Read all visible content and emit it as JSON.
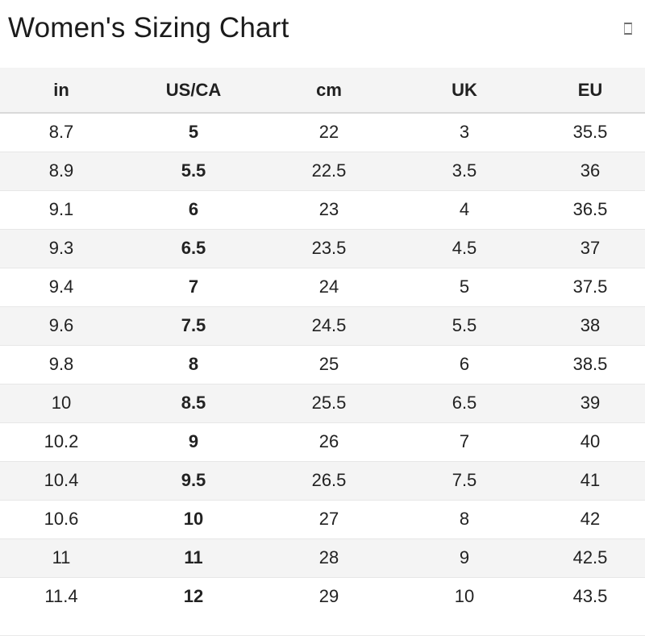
{
  "page": {
    "title": "Women's Sizing Chart"
  },
  "icons": {
    "corner_glyph": "unknown-glyph-box"
  },
  "colors": {
    "background": "#ffffff",
    "stripe": "#f4f4f4",
    "header_background": "#f4f4f4",
    "row_border": "#e7e7e7",
    "header_border": "#d9d9d9",
    "text": "#222222",
    "title_text": "#1b1b1b"
  },
  "table": {
    "columns": [
      "in",
      "US/CA",
      "cm",
      "UK",
      "EU"
    ],
    "rows": [
      [
        "8.7",
        "5",
        "22",
        "3",
        "35.5"
      ],
      [
        "8.9",
        "5.5",
        "22.5",
        "3.5",
        "36"
      ],
      [
        "9.1",
        "6",
        "23",
        "4",
        "36.5"
      ],
      [
        "9.3",
        "6.5",
        "23.5",
        "4.5",
        "37"
      ],
      [
        "9.4",
        "7",
        "24",
        "5",
        "37.5"
      ],
      [
        "9.6",
        "7.5",
        "24.5",
        "5.5",
        "38"
      ],
      [
        "9.8",
        "8",
        "25",
        "6",
        "38.5"
      ],
      [
        "10",
        "8.5",
        "25.5",
        "6.5",
        "39"
      ],
      [
        "10.2",
        "9",
        "26",
        "7",
        "40"
      ],
      [
        "10.4",
        "9.5",
        "26.5",
        "7.5",
        "41"
      ],
      [
        "10.6",
        "10",
        "27",
        "8",
        "42"
      ],
      [
        "11",
        "11",
        "28",
        "9",
        "42.5"
      ],
      [
        "11.4",
        "12",
        "29",
        "10",
        "43.5"
      ]
    ]
  }
}
